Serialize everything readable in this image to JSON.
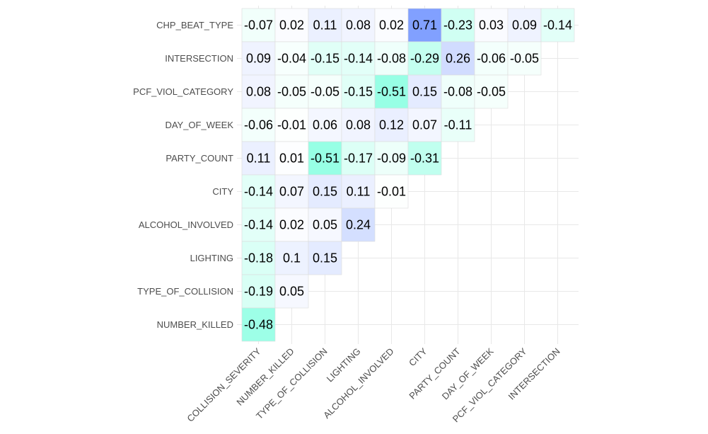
{
  "chart_data": {
    "type": "heatmap",
    "title": "",
    "xlabel": "",
    "ylabel": "",
    "x_categories": [
      "COLLISION_SEVERITY",
      "NUMBER_KILLED",
      "TYPE_OF_COLLISION",
      "LIGHTING",
      "ALCOHOL_INVOLVED",
      "CITY",
      "PARTY_COUNT",
      "DAY_OF_WEEK",
      "PCF_VIOL_CATEGORY",
      "INTERSECTION"
    ],
    "y_categories": [
      "CHP_BEAT_TYPE",
      "INTERSECTION",
      "PCF_VIOL_CATEGORY",
      "DAY_OF_WEEK",
      "PARTY_COUNT",
      "CITY",
      "ALCOHOL_INVOLVED",
      "LIGHTING",
      "TYPE_OF_COLLISION",
      "NUMBER_KILLED"
    ],
    "values": [
      [
        "-0.07",
        "0.02",
        "0.11",
        "0.08",
        "0.02",
        "0.71",
        "-0.23",
        "0.03",
        "0.09",
        "-0.14"
      ],
      [
        "0.09",
        "-0.04",
        "-0.15",
        "-0.14",
        "-0.08",
        "-0.29",
        "0.26",
        "-0.06",
        "-0.05"
      ],
      [
        "0.08",
        "-0.05",
        "-0.05",
        "-0.15",
        "-0.51",
        "0.15",
        "-0.08",
        "-0.05"
      ],
      [
        "-0.06",
        "-0.01",
        "0.06",
        "0.08",
        "0.12",
        "0.07",
        "-0.11"
      ],
      [
        "0.11",
        "0.01",
        "-0.51",
        "-0.17",
        "-0.09",
        "-0.31"
      ],
      [
        "-0.14",
        "0.07",
        "0.15",
        "0.11",
        "-0.01"
      ],
      [
        "-0.14",
        "0.02",
        "0.05",
        "0.24"
      ],
      [
        "-0.18",
        "0.1",
        "0.15"
      ],
      [
        "-0.19",
        "0.05"
      ],
      [
        "-0.48"
      ]
    ],
    "color_scale": {
      "negative": "#33ffcc",
      "zero": "#ffffff",
      "positive": "#4d79ff"
    },
    "grid": true,
    "legend": "none"
  }
}
